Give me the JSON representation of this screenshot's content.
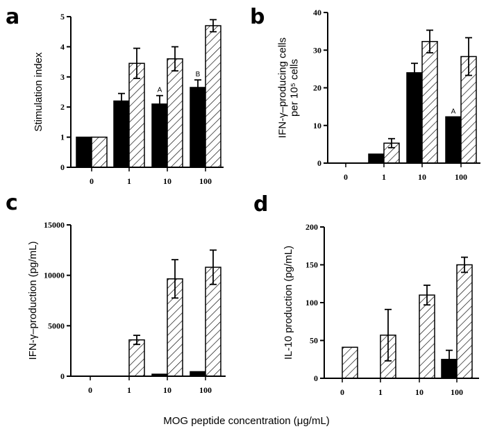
{
  "x_axis_label": "MOG peptide concentration (μg/mL)",
  "colors": {
    "solid": "#000000",
    "hatched_fill": "#ffffff",
    "hatch_line": "#000000"
  },
  "chart_data": [
    {
      "type": "bar",
      "panel": "a",
      "ylabel": [
        "Stimulation index"
      ],
      "categories": [
        "0",
        "1",
        "10",
        "100"
      ],
      "ylim": [
        0,
        5
      ],
      "yticks": [
        "0",
        "1",
        "2",
        "3",
        "4",
        "5"
      ],
      "series": [
        {
          "style": "solid",
          "values": [
            1,
            2.2,
            2.1,
            2.65
          ],
          "errors": [
            0,
            0.25,
            0.28,
            0.25
          ]
        },
        {
          "style": "hatched",
          "values": [
            1,
            3.45,
            3.6,
            4.7
          ],
          "errors": [
            0,
            0.5,
            0.4,
            0.2
          ]
        }
      ],
      "annotations": [
        {
          "series": 0,
          "category": "10",
          "text": "A"
        },
        {
          "series": 0,
          "category": "100",
          "text": "B"
        }
      ]
    },
    {
      "type": "bar",
      "panel": "b",
      "ylabel": [
        "IFN-γ–producing cells",
        "per 10⁵ cells"
      ],
      "categories": [
        "0",
        "1",
        "10",
        "100"
      ],
      "ylim": [
        0,
        40
      ],
      "yticks": [
        "0",
        "10",
        "20",
        "30",
        "40"
      ],
      "series": [
        {
          "style": "solid",
          "values": [
            0,
            2.4,
            24,
            12.3
          ],
          "errors": [
            0,
            0,
            2.5,
            0
          ]
        },
        {
          "style": "hatched",
          "values": [
            0,
            5.3,
            32.3,
            28.3
          ],
          "errors": [
            0,
            1.2,
            3,
            5
          ]
        }
      ],
      "annotations": [
        {
          "series": 0,
          "category": "100",
          "text": "A"
        }
      ]
    },
    {
      "type": "bar",
      "panel": "c",
      "ylabel": [
        "IFN-γ–production (pg/mL)"
      ],
      "categories": [
        "0",
        "1",
        "10",
        "100"
      ],
      "ylim": [
        0,
        15000
      ],
      "yticks": [
        "0",
        "5000",
        "10000",
        "15000"
      ],
      "series": [
        {
          "style": "solid",
          "values": [
            0,
            0,
            200,
            450
          ],
          "errors": [
            0,
            0,
            0,
            0
          ]
        },
        {
          "style": "hatched",
          "values": [
            0,
            3600,
            9650,
            10800
          ],
          "errors": [
            0,
            450,
            1900,
            1700
          ]
        }
      ],
      "annotations": []
    },
    {
      "type": "bar",
      "panel": "d",
      "ylabel": [
        "IL-10 production (pg/mL)"
      ],
      "categories": [
        "0",
        "1",
        "10",
        "100"
      ],
      "ylim": [
        0,
        200
      ],
      "yticks": [
        "0",
        "50",
        "100",
        "150",
        "200"
      ],
      "series": [
        {
          "style": "solid",
          "values": [
            0,
            0,
            0,
            25
          ],
          "errors": [
            0,
            0,
            0,
            12
          ]
        },
        {
          "style": "hatched",
          "values": [
            41,
            57,
            110,
            150
          ],
          "errors": [
            0,
            34,
            13,
            10
          ]
        }
      ],
      "annotations": []
    }
  ]
}
